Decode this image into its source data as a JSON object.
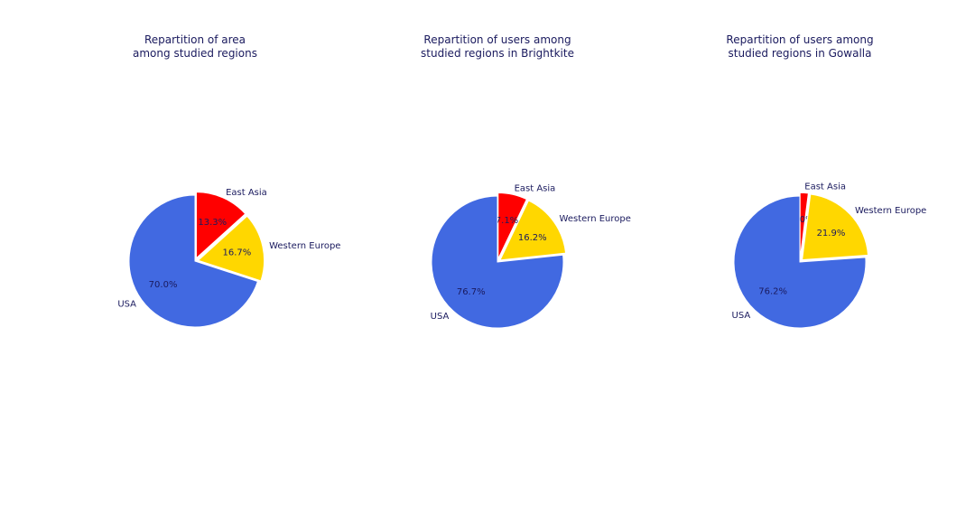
{
  "text_color": "#1a1a5e",
  "chart_data": [
    {
      "type": "pie",
      "title": [
        "Repartition of area",
        "among studied regions"
      ],
      "labels": [
        "East Asia",
        "Western Europe",
        "USA"
      ],
      "values": [
        13.3,
        16.7,
        70.0
      ],
      "autopct": [
        "13.3%",
        "16.7%",
        "70.0%"
      ],
      "colors": [
        "#ff0000",
        "#ffd700",
        "#4169e1"
      ],
      "explode": [
        0.05,
        0.05,
        0
      ],
      "start_angle": 90,
      "direction": "clockwise"
    },
    {
      "type": "pie",
      "title": [
        "Repartition of users among",
        "studied regions in Brightkite"
      ],
      "labels": [
        "East Asia",
        "Western Europe",
        "USA"
      ],
      "values": [
        7.1,
        16.2,
        76.7
      ],
      "autopct": [
        "7.1%",
        "16.2%",
        "76.7%"
      ],
      "colors": [
        "#ff0000",
        "#ffd700",
        "#4169e1"
      ],
      "explode": [
        0.05,
        0.05,
        0
      ],
      "start_angle": 90,
      "direction": "clockwise"
    },
    {
      "type": "pie",
      "title": [
        "Repartition of users among",
        "studied regions in Gowalla"
      ],
      "labels": [
        "East Asia",
        "Western Europe",
        "USA"
      ],
      "values": [
        2.0,
        21.9,
        76.2
      ],
      "autopct": [
        "2.0%",
        "21.9%",
        "76.2%"
      ],
      "colors": [
        "#ff0000",
        "#ffd700",
        "#4169e1"
      ],
      "explode": [
        0.05,
        0.05,
        0
      ],
      "start_angle": 90,
      "direction": "clockwise"
    }
  ]
}
